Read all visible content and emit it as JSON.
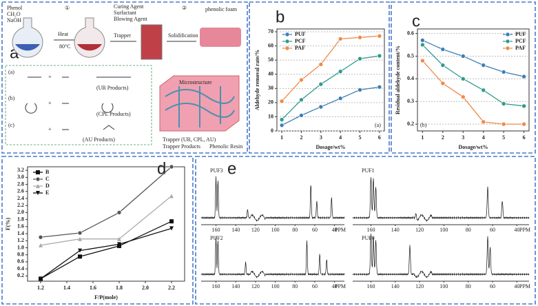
{
  "chart_data": [
    {
      "type": "line",
      "panel_label": "b",
      "x_label": "Dosage/wt%",
      "y_label": "Aldehyde removal rate/%",
      "annotation": "(a)",
      "x": [
        1,
        2,
        3,
        4,
        5,
        6
      ],
      "xlim": [
        0.75,
        6.25
      ],
      "xticks": [
        1,
        2,
        3,
        4,
        5,
        6
      ],
      "ylim": [
        0,
        72
      ],
      "yticks": [
        0,
        10,
        20,
        30,
        40,
        50,
        60,
        70
      ],
      "grid": true,
      "legend": "upper left",
      "series": [
        {
          "name": "PUF",
          "color": "#3b7fb6",
          "marker": "circle",
          "values": [
            4,
            11,
            17,
            23,
            29,
            31
          ]
        },
        {
          "name": "PCF",
          "color": "#2f9a8e",
          "marker": "circle",
          "values": [
            8,
            22,
            33,
            42,
            51,
            53
          ]
        },
        {
          "name": "PAF",
          "color": "#ef8a4a",
          "marker": "circle",
          "values": [
            21,
            36,
            47,
            65,
            66,
            67
          ]
        }
      ]
    },
    {
      "type": "line",
      "panel_label": "c",
      "x_label": "Dosage/wt%",
      "y_label": "Residual aldehyde content/%",
      "annotation": "(b)",
      "x": [
        1,
        2,
        3,
        4,
        5,
        6
      ],
      "xlim": [
        0.75,
        6.25
      ],
      "xticks": [
        1,
        2,
        3,
        4,
        5,
        6
      ],
      "ylim": [
        0.17,
        0.62
      ],
      "yticks": [
        0.2,
        0.3,
        0.4,
        0.5,
        0.6
      ],
      "grid": true,
      "legend": "upper right",
      "series": [
        {
          "name": "PUF",
          "color": "#3b7fb6",
          "marker": "circle",
          "values": [
            0.57,
            0.53,
            0.5,
            0.46,
            0.43,
            0.41
          ]
        },
        {
          "name": "PCF",
          "color": "#2f9a8e",
          "marker": "circle",
          "values": [
            0.55,
            0.46,
            0.4,
            0.35,
            0.29,
            0.28
          ]
        },
        {
          "name": "PAF",
          "color": "#ef8a4a",
          "marker": "circle",
          "values": [
            0.48,
            0.38,
            0.32,
            0.21,
            0.2,
            0.2
          ]
        }
      ]
    },
    {
      "type": "line",
      "panel_label": "d",
      "x_label": "F/P(mole)",
      "y_label": "F(%)",
      "x": [
        1.2,
        1.5,
        1.8,
        2.2
      ],
      "xlim": [
        1.1,
        2.3
      ],
      "xticks": [
        1.2,
        1.4,
        1.6,
        1.8,
        {
          "value": 2,
          "label": "2.0"
        },
        2.2
      ],
      "ylim": [
        0.05,
        3.3
      ],
      "yticks": [
        0.2,
        0.4,
        0.6,
        0.8,
        {
          "value": 1,
          "label": "1.0"
        },
        1.2,
        1.4,
        1.6,
        1.8,
        {
          "value": 2,
          "label": "2.0"
        },
        2.2,
        2.4,
        2.6,
        2.8,
        {
          "value": 3,
          "label": "3.0"
        },
        3.2
      ],
      "grid": false,
      "legend": "upper left",
      "series": [
        {
          "name": "B",
          "color": "#111111",
          "marker": "square",
          "values": [
            0.12,
            0.75,
            1.05,
            1.75
          ]
        },
        {
          "name": "C",
          "color": "#555555",
          "marker": "circle",
          "values": [
            1.3,
            1.42,
            2.0,
            3.3
          ]
        },
        {
          "name": "D",
          "color": "#aaaaaa",
          "marker": "triangle-up",
          "values": [
            1.07,
            1.25,
            1.25,
            2.47
          ]
        },
        {
          "name": "E",
          "color": "#111111",
          "marker": "triangle-down",
          "values": [
            0.12,
            0.92,
            1.1,
            1.55
          ]
        }
      ]
    }
  ],
  "scheme": {
    "panel_label": "a",
    "reagents": [
      "Phenol",
      "CH₂O",
      "NaOH"
    ],
    "step1": "①",
    "step2": "②",
    "heat": "Heat",
    "temperature": "80°C",
    "additives": [
      "Curing Agent",
      "Surfactant",
      "Blowing Agent"
    ],
    "trapper": "Trapper",
    "solidification": "Solidification",
    "foam": "phenolic foam",
    "microstructure": "Microstructure",
    "reactions": [
      {
        "label": "(a)",
        "product": "(UR Products)"
      },
      {
        "label": "(b)",
        "product": "(CPL Products)"
      },
      {
        "label": "(c)",
        "product": "(AU Products)"
      }
    ],
    "plus": "+",
    "legend": [
      "Trapper (UR, CPL, AU)",
      "Trapper Products",
      "Phenolic Resin"
    ]
  },
  "nmr": {
    "panel_label": "e",
    "spectra": [
      "PUF3",
      "PUF1",
      "PUF2",
      "PUF0"
    ],
    "ticks": [
      160,
      140,
      120,
      100,
      80,
      60,
      40
    ],
    "unit": "PPM"
  }
}
